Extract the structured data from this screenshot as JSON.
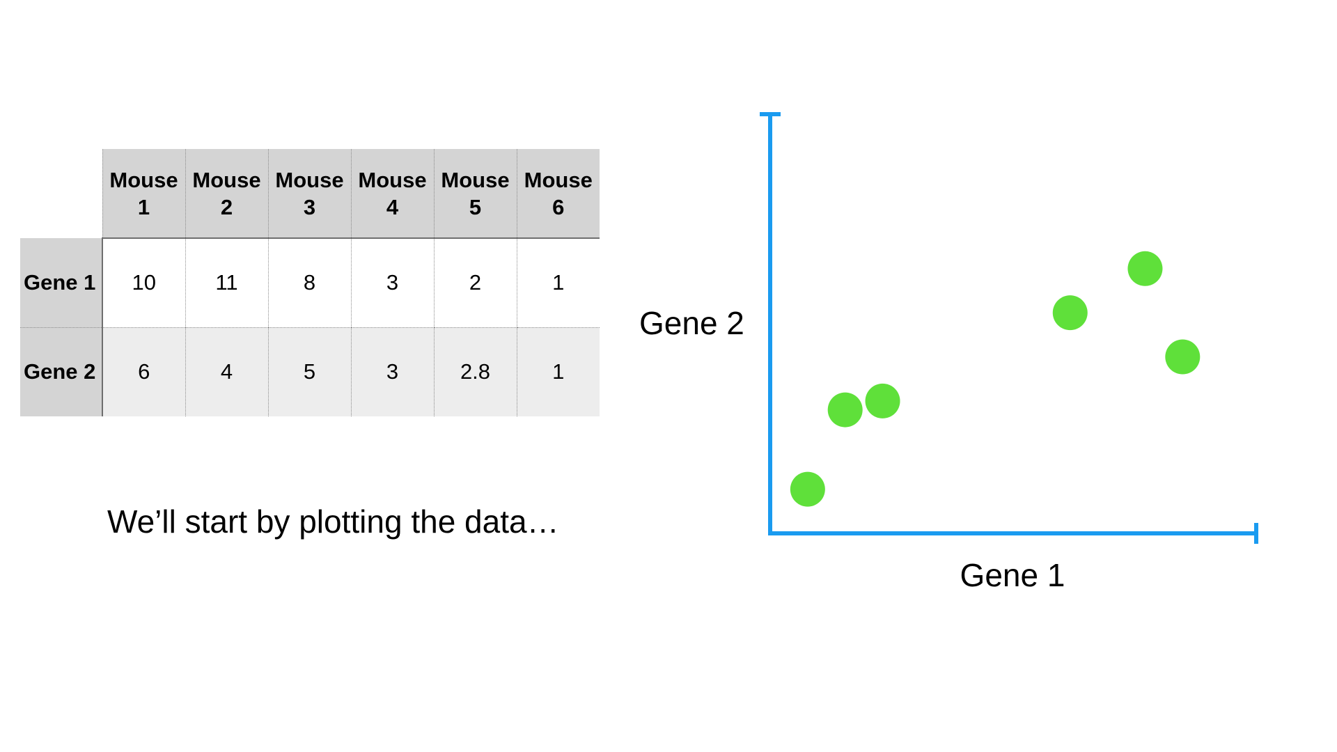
{
  "table": {
    "columns": [
      "Mouse\n1",
      "Mouse\n2",
      "Mouse\n3",
      "Mouse\n4",
      "Mouse\n5",
      "Mouse\n6"
    ],
    "rows": [
      {
        "label": "Gene 1",
        "values": [
          "10",
          "11",
          "8",
          "3",
          "2",
          "1"
        ]
      },
      {
        "label": "Gene 2",
        "values": [
          "6",
          "4",
          "5",
          "3",
          "2.8",
          "1"
        ]
      }
    ]
  },
  "caption": "We’ll start by plotting the data…",
  "chart_data": {
    "type": "scatter",
    "xlabel": "Gene 1",
    "ylabel": "Gene 2",
    "xlim": [
      0,
      13
    ],
    "ylim": [
      0,
      9.5
    ],
    "points": [
      {
        "x": 10,
        "y": 6
      },
      {
        "x": 11,
        "y": 4
      },
      {
        "x": 8,
        "y": 5
      },
      {
        "x": 3,
        "y": 3
      },
      {
        "x": 2,
        "y": 2.8
      },
      {
        "x": 1,
        "y": 1
      }
    ],
    "colors": {
      "axis": "#1a9bf0",
      "point": "#5fe03a"
    },
    "grid": false
  }
}
